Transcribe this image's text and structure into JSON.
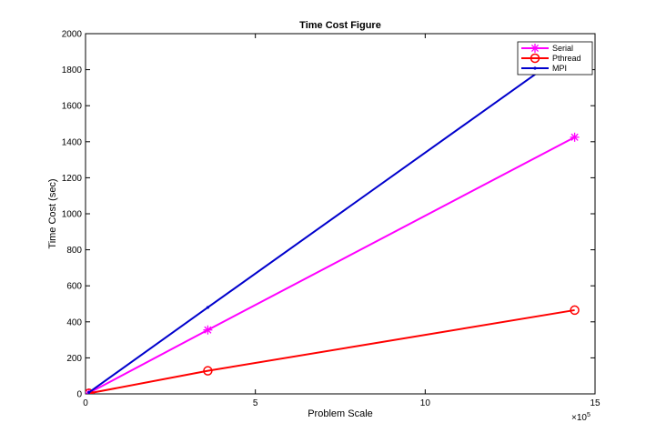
{
  "chart_data": {
    "type": "line",
    "title": "Time Cost Figure",
    "xlabel": "Problem Scale",
    "ylabel": "Time Cost (sec)",
    "x_multiplier": "×10",
    "x_exponent": "5",
    "xlim": [
      0,
      15
    ],
    "ylim": [
      0,
      2000
    ],
    "xticks": [
      0,
      5,
      10,
      15
    ],
    "yticks": [
      0,
      200,
      400,
      600,
      800,
      1000,
      1200,
      1400,
      1600,
      1800,
      2000
    ],
    "grid": false,
    "legend_position": "top-right",
    "series": [
      {
        "name": "Serial",
        "color": "#ff00ff",
        "marker": "asterisk",
        "x": [
          0.1,
          3.6,
          14.4
        ],
        "y": [
          5,
          355,
          1425
        ]
      },
      {
        "name": "Pthread",
        "color": "#ff0000",
        "marker": "circle",
        "x": [
          0.1,
          3.6,
          14.4
        ],
        "y": [
          3,
          128,
          465
        ]
      },
      {
        "name": "MPI",
        "color": "#0000cc",
        "marker": "dot",
        "x": [
          0.1,
          3.6,
          14.4
        ],
        "y": [
          8,
          480,
          1930
        ]
      }
    ]
  }
}
